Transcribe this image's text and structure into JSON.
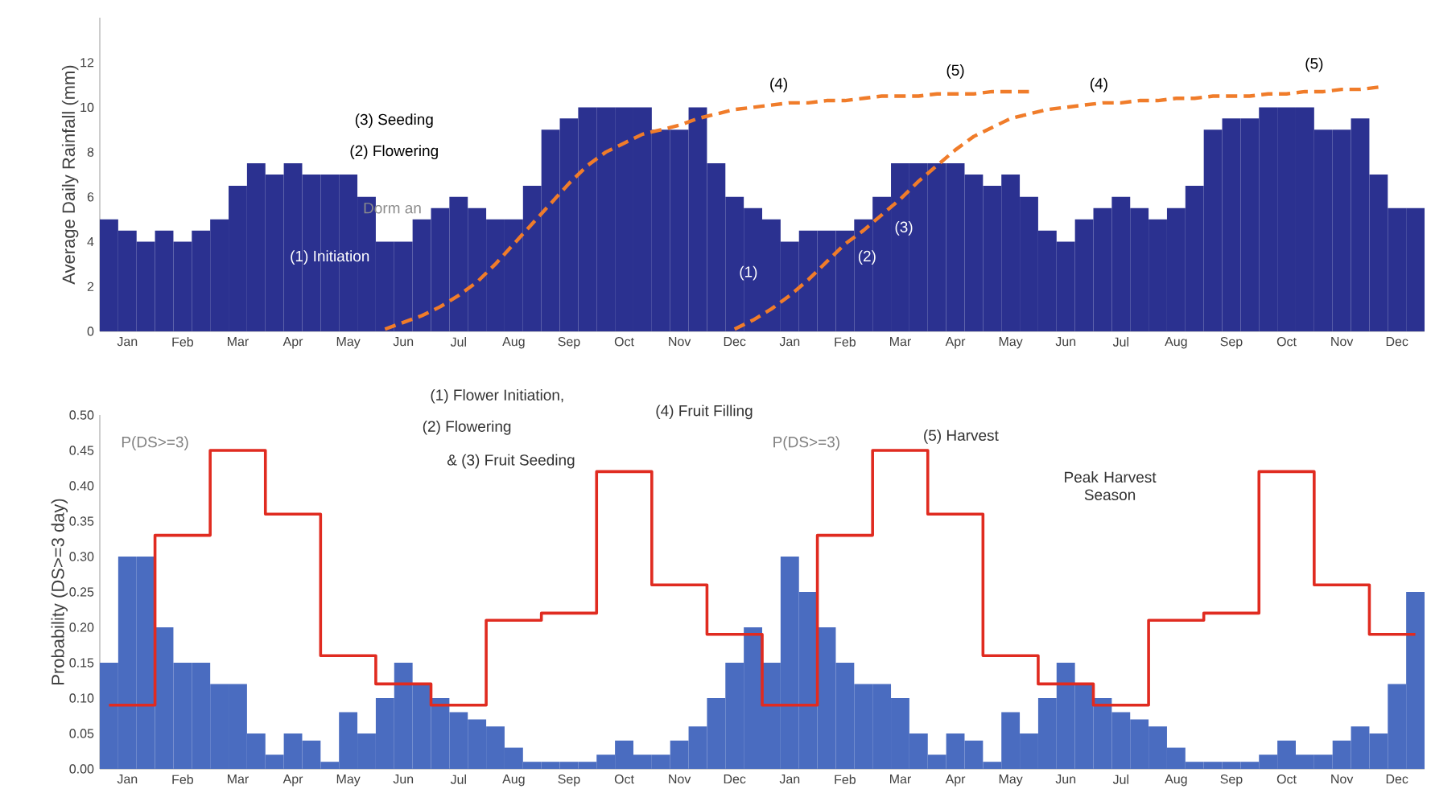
{
  "chart_data": [
    {
      "type": "bar",
      "ylabel": "Average Daily Rainfall (mm)",
      "ylim": [
        0,
        14
      ],
      "yticks": [
        0,
        2,
        4,
        6,
        8,
        10,
        12
      ],
      "categories": [
        null,
        "Jan",
        null,
        null,
        "Feb",
        null,
        null,
        "Mar",
        null,
        null,
        "Apr",
        null,
        null,
        "May",
        null,
        null,
        "Jun",
        null,
        null,
        "Jul",
        null,
        null,
        "Aug",
        null,
        null,
        "Sep",
        null,
        null,
        "Oct",
        null,
        null,
        "Nov",
        null,
        null,
        "Dec",
        null,
        null,
        "Jan",
        null,
        null,
        "Feb",
        null,
        null,
        "Mar",
        null,
        null,
        "Apr",
        null,
        null,
        "May",
        null,
        null,
        "Jun",
        null,
        null,
        "Jul",
        null,
        null,
        "Aug",
        null,
        null,
        "Sep",
        null,
        null,
        "Oct",
        null,
        null,
        "Nov",
        null,
        null,
        "Dec",
        null
      ],
      "series": [
        {
          "color": "#2b3190",
          "values": [
            5,
            4.5,
            4,
            4.5,
            4,
            4.5,
            5,
            6.5,
            7.5,
            7,
            7.5,
            7,
            7,
            7,
            6,
            4,
            4,
            5,
            5.5,
            6,
            5.5,
            5,
            5,
            6.5,
            9,
            9.5,
            10,
            10,
            10,
            10,
            9,
            9,
            10,
            7.5,
            6,
            5.5,
            5,
            4,
            4.5,
            4.5,
            4.5,
            5,
            6,
            7.5,
            7.5,
            7.5,
            7.5,
            7,
            6.5,
            7,
            6,
            4.5,
            4,
            5,
            5.5,
            6,
            5.5,
            5,
            5.5,
            6.5,
            9,
            9.5,
            9.5,
            10,
            10,
            10,
            9,
            9,
            9.5,
            7,
            5.5,
            5.5
          ]
        },
        {
          "type": "line",
          "color": "#f07c2a",
          "line_style": "dashed",
          "values": [
            null,
            null,
            null,
            null,
            null,
            null,
            null,
            null,
            null,
            null,
            null,
            null,
            null,
            null,
            null,
            0.1,
            0.4,
            0.7,
            1.1,
            1.6,
            2.2,
            3.0,
            3.9,
            4.8,
            5.7,
            6.6,
            7.4,
            8.0,
            8.4,
            8.8,
            9.0,
            9.2,
            9.5,
            9.7,
            9.9,
            10.0,
            10.1,
            10.2,
            10.2,
            10.3,
            10.3,
            10.4,
            10.5,
            10.5,
            10.5,
            10.6,
            10.6,
            10.6,
            10.7,
            10.7,
            10.7,
            null,
            null,
            null,
            null,
            null,
            null,
            null,
            null,
            null,
            null,
            null,
            null,
            null,
            null,
            null,
            null,
            null,
            null,
            null,
            null,
            null
          ]
        },
        {
          "type": "line",
          "color": "#f07c2a",
          "line_style": "dashed",
          "values": [
            null,
            null,
            null,
            null,
            null,
            null,
            null,
            null,
            null,
            null,
            null,
            null,
            null,
            null,
            null,
            null,
            null,
            null,
            null,
            null,
            null,
            null,
            null,
            null,
            null,
            null,
            null,
            null,
            null,
            null,
            null,
            null,
            null,
            null,
            0.1,
            0.5,
            1.0,
            1.6,
            2.3,
            3.1,
            3.9,
            4.5,
            5.2,
            5.9,
            6.7,
            7.4,
            8.1,
            8.7,
            9.1,
            9.5,
            9.7,
            9.9,
            10.0,
            10.1,
            10.2,
            10.2,
            10.3,
            10.3,
            10.4,
            10.4,
            10.5,
            10.5,
            10.5,
            10.6,
            10.6,
            10.7,
            10.7,
            10.8,
            10.8,
            10.9,
            null,
            null
          ]
        }
      ],
      "annotations": [
        "(3) Seeding",
        "(2) Flowering",
        "Dorm an",
        "(1) Initiation",
        "(4)",
        "(5)",
        "(4)",
        "(5)",
        "(1)",
        "(2)",
        "(3)",
        "(1) Flower Initiation,",
        "(2) Flowering",
        "& (3) Fruit Seeding",
        "(4) Fruit Filling",
        "(5) Harvest"
      ]
    },
    {
      "type": "bar",
      "ylabel": "Probability (DS>=3 day)",
      "ylim": [
        0,
        0.5
      ],
      "yticks": [
        {
          "value": 0,
          "label": "0.00"
        },
        {
          "value": 0.05,
          "label": "0.05"
        },
        {
          "value": 0.1,
          "label": "0.10"
        },
        {
          "value": 0.15,
          "label": "0.15"
        },
        {
          "value": 0.2,
          "label": "0.20"
        },
        {
          "value": 0.25,
          "label": "0.25"
        },
        {
          "value": 0.3,
          "label": "0.30"
        },
        {
          "value": 0.35,
          "label": "0.35"
        },
        {
          "value": 0.4,
          "label": "0.40"
        },
        {
          "value": 0.45,
          "label": "0.45"
        },
        {
          "value": 0.5,
          "label": "0.50"
        }
      ],
      "categories": [
        null,
        "Jan",
        null,
        null,
        "Feb",
        null,
        null,
        "Mar",
        null,
        null,
        "Apr",
        null,
        null,
        "May",
        null,
        null,
        "Jun",
        null,
        null,
        "Jul",
        null,
        null,
        "Aug",
        null,
        null,
        "Sep",
        null,
        null,
        "Oct",
        null,
        null,
        "Nov",
        null,
        null,
        "Dec",
        null,
        null,
        "Jan",
        null,
        null,
        "Feb",
        null,
        null,
        "Mar",
        null,
        null,
        "Apr",
        null,
        null,
        "May",
        null,
        null,
        "Jun",
        null,
        null,
        "Jul",
        null,
        null,
        "Aug",
        null,
        null,
        "Sep",
        null,
        null,
        "Oct",
        null,
        null,
        "Nov",
        null,
        null,
        "Dec",
        null
      ],
      "series": [
        {
          "color": "#4a6cc0",
          "values": [
            0.15,
            0.3,
            0.3,
            0.2,
            0.15,
            0.15,
            0.12,
            0.12,
            0.05,
            0.02,
            0.05,
            0.04,
            0.01,
            0.08,
            0.05,
            0.1,
            0.15,
            0.12,
            0.1,
            0.08,
            0.07,
            0.06,
            0.03,
            0.01,
            0.01,
            0.01,
            0.01,
            0.02,
            0.04,
            0.02,
            0.02,
            0.04,
            0.06,
            0.1,
            0.15,
            0.2,
            0.15,
            0.3,
            0.25,
            0.2,
            0.15,
            0.12,
            0.12,
            0.1,
            0.05,
            0.02,
            0.05,
            0.04,
            0.01,
            0.08,
            0.05,
            0.1,
            0.15,
            0.12,
            0.1,
            0.08,
            0.07,
            0.06,
            0.03,
            0.01,
            0.01,
            0.01,
            0.01,
            0.02,
            0.04,
            0.02,
            0.02,
            0.04,
            0.06,
            0.05,
            0.12,
            0.25
          ]
        },
        {
          "type": "step",
          "color": "#e02b20",
          "values": [
            0.09,
            0.09,
            0.09,
            0.33,
            0.33,
            0.33,
            0.45,
            0.45,
            0.45,
            0.36,
            0.36,
            0.36,
            0.16,
            0.16,
            0.16,
            0.12,
            0.12,
            0.12,
            0.09,
            0.09,
            0.09,
            0.21,
            0.21,
            0.21,
            0.22,
            0.22,
            0.22,
            0.42,
            0.42,
            0.42,
            0.26,
            0.26,
            0.26,
            0.19,
            0.19,
            0.19,
            0.09,
            0.09,
            0.09,
            0.33,
            0.33,
            0.33,
            0.45,
            0.45,
            0.45,
            0.36,
            0.36,
            0.36,
            0.16,
            0.16,
            0.16,
            0.12,
            0.12,
            0.12,
            0.09,
            0.09,
            0.09,
            0.21,
            0.21,
            0.21,
            0.22,
            0.22,
            0.22,
            0.42,
            0.42,
            0.42,
            0.26,
            0.26,
            0.26,
            0.19,
            0.19,
            0.19
          ]
        }
      ],
      "annotations": [
        "P(DS>=3)",
        "P(DS>=3)",
        "Peak Harvest Season"
      ]
    }
  ]
}
